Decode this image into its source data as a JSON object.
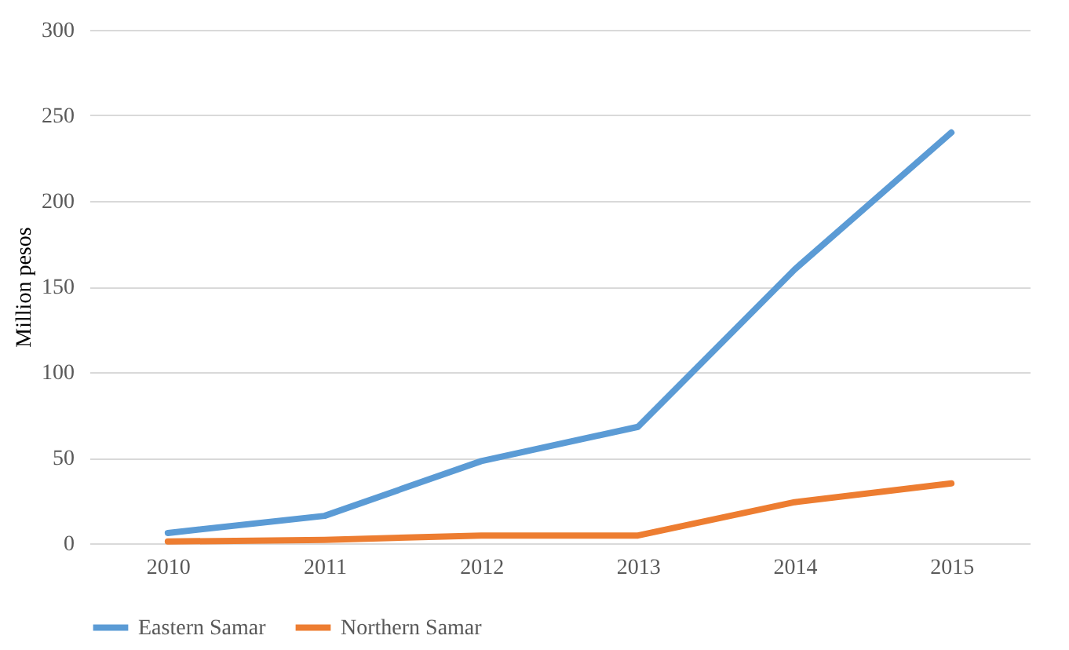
{
  "chart_data": {
    "type": "line",
    "ylabel": "Million  pesos",
    "categories": [
      "2010",
      "2011",
      "2012",
      "2013",
      "2014",
      "2015"
    ],
    "series": [
      {
        "name": "Eastern Samar",
        "color": "#5b9bd5",
        "values": [
          6,
          16,
          48,
          68,
          160,
          240
        ]
      },
      {
        "name": "Northern Samar",
        "color": "#ed7d31",
        "values": [
          1,
          2,
          4.5,
          4.5,
          24,
          35
        ]
      }
    ],
    "ylim": [
      0,
      300
    ],
    "yticks": [
      0,
      50,
      100,
      150,
      200,
      250,
      300
    ],
    "grid": "y",
    "legend": "bottom"
  }
}
